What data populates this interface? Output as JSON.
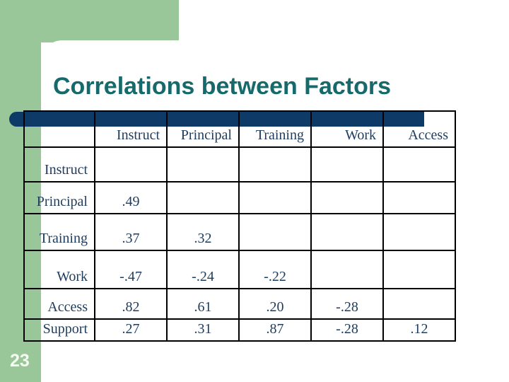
{
  "slide": {
    "title": "Correlations between Factors",
    "page_number": "23",
    "colors": {
      "background_green": "#9ac799",
      "accent_navy": "#0e3a67",
      "title_teal": "#176a6c",
      "table_text": "#1d3c5e"
    }
  },
  "table": {
    "columns": [
      "",
      "Instruct",
      "Principal",
      "Training",
      "Work",
      "Access"
    ],
    "rows": [
      {
        "label": "Instruct",
        "values": [
          "",
          "",
          "",
          "",
          ""
        ]
      },
      {
        "label": "Principal",
        "values": [
          ".49",
          "",
          "",
          "",
          ""
        ]
      },
      {
        "label": "Training",
        "values": [
          ".37",
          ".32",
          "",
          "",
          ""
        ]
      },
      {
        "label": "Work",
        "values": [
          "-.47",
          "-.24",
          "-.22",
          "",
          ""
        ]
      },
      {
        "label": "Access",
        "values": [
          ".82",
          ".61",
          ".20",
          "-.28",
          ""
        ]
      },
      {
        "label": "Support",
        "values": [
          ".27",
          ".31",
          ".87",
          "-.28",
          ".12"
        ]
      }
    ]
  }
}
